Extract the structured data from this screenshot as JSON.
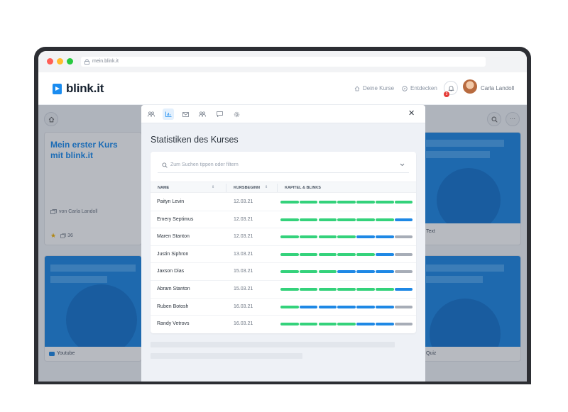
{
  "browser": {
    "url": "mein.blink.it"
  },
  "header": {
    "logo": "blink.it",
    "nav": {
      "courses": "Deine Kurse",
      "discover": "Entdecken"
    },
    "notifications_count": "3",
    "user_name": "Carla Landoll"
  },
  "background_cards": {
    "first_course": {
      "title_line1": "Mein erster Kurs",
      "title_line2": "mit blink.it",
      "author": "von Carla Landoll",
      "count": "36"
    },
    "right_top_label": "Text",
    "left_bottom_label": "Youtube",
    "right_bottom_label": "Quiz"
  },
  "modal": {
    "title": "Statistiken des Kurses",
    "search_placeholder": "Zum Suchen tippen oder filtern",
    "columns": {
      "name": "NAME",
      "start": "KURSBEGINN",
      "progress": "KAPITEL & BLINKS"
    },
    "rows": [
      {
        "name": "Paityn Levin",
        "date": "12.03.21",
        "segments": [
          "green",
          "green",
          "green",
          "green",
          "green",
          "green",
          "green"
        ]
      },
      {
        "name": "Emery Septimus",
        "date": "12.03.21",
        "segments": [
          "green",
          "green",
          "green",
          "green",
          "green",
          "green",
          "blue"
        ]
      },
      {
        "name": "Maren Stanton",
        "date": "12.03.21",
        "segments": [
          "green",
          "green",
          "green",
          "green",
          "blue",
          "blue",
          "grey"
        ]
      },
      {
        "name": "Justin Siphron",
        "date": "13.03.21",
        "segments": [
          "green",
          "green",
          "green",
          "green",
          "green",
          "blue",
          "grey"
        ]
      },
      {
        "name": "Jaxson Dias",
        "date": "15.03.21",
        "segments": [
          "green",
          "green",
          "green",
          "blue",
          "blue",
          "blue",
          "grey"
        ]
      },
      {
        "name": "Abram Stanton",
        "date": "15.03.21",
        "segments": [
          "green",
          "green",
          "green",
          "green",
          "green",
          "green",
          "blue"
        ]
      },
      {
        "name": "Ruben Botosh",
        "date": "16.03.21",
        "segments": [
          "green",
          "blue",
          "blue",
          "blue",
          "blue",
          "blue",
          "grey"
        ]
      },
      {
        "name": "Randy Vetrovs",
        "date": "16.03.21",
        "segments": [
          "green",
          "green",
          "green",
          "green",
          "blue",
          "blue",
          "grey"
        ]
      }
    ]
  },
  "colors": {
    "green": "#34d27b",
    "blue": "#1e88e5",
    "grey": "#a7adb7",
    "accent": "#1a8cf0"
  },
  "icons": [
    "home-icon",
    "compass-icon",
    "bell-icon",
    "search-icon",
    "more-icon",
    "users-icon",
    "chart-icon",
    "mail-icon",
    "group-icon",
    "chat-icon",
    "gear-icon",
    "close-icon",
    "chevron-down-icon",
    "star-icon",
    "cards-icon",
    "youtube-icon"
  ]
}
